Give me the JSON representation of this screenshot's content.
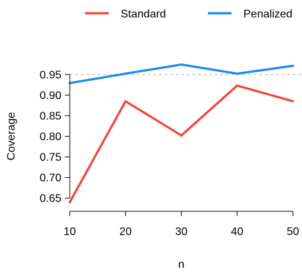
{
  "chart_data": {
    "type": "line",
    "title": "",
    "xlabel": "n",
    "ylabel": "Coverage",
    "x": [
      10,
      20,
      30,
      40,
      50
    ],
    "xlim": [
      10,
      50
    ],
    "ylim": [
      0.64,
      0.975
    ],
    "xticks": [
      "10",
      "20",
      "30",
      "40",
      "50"
    ],
    "yticks": [
      "0.65",
      "0.70",
      "0.75",
      "0.80",
      "0.85",
      "0.90",
      "0.95"
    ],
    "reference_line": {
      "y": 0.95,
      "style": "dashed",
      "color": "#bdbdbd"
    },
    "legend_position": "top",
    "grid": false,
    "series": [
      {
        "name": "Standard",
        "color": "#f2473a",
        "values": [
          0.64,
          0.885,
          0.802,
          0.923,
          0.885
        ]
      },
      {
        "name": "Penalized",
        "color": "#1a8cf0",
        "values": [
          0.929,
          0.952,
          0.974,
          0.952,
          0.971
        ]
      }
    ]
  }
}
